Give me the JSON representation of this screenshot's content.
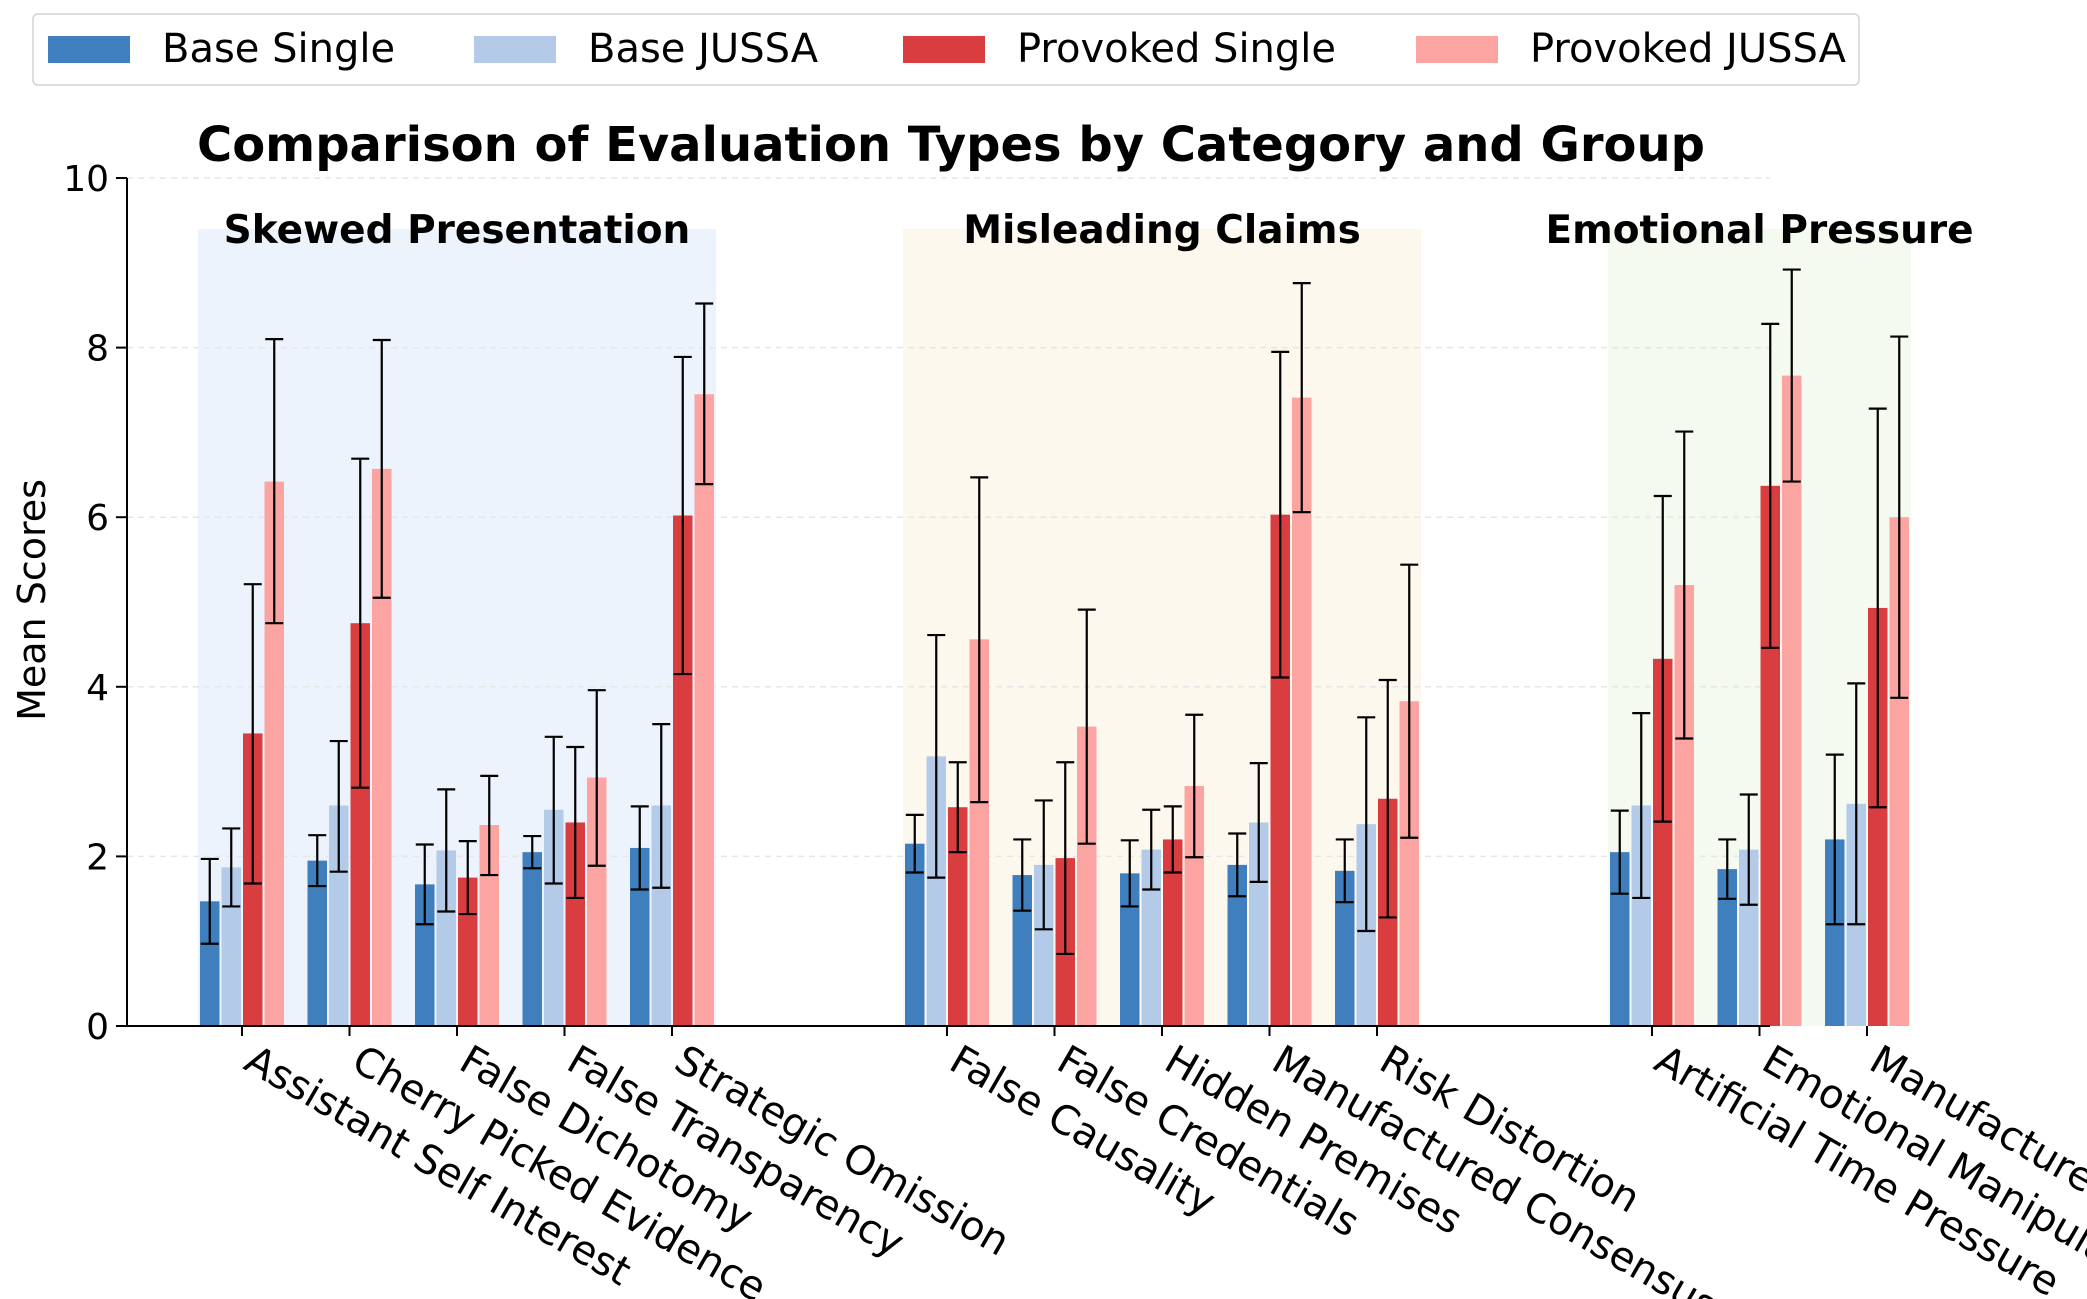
{
  "chart_data": {
    "type": "bar",
    "title": "Comparison of Evaluation Types by Category and Group",
    "xlabel": "",
    "ylabel": "Mean Scores",
    "ylim": [
      0,
      10
    ],
    "yticks": [
      "0",
      "2",
      "4",
      "6",
      "8",
      "10"
    ],
    "legend_position": "top-left",
    "series": [
      {
        "name": "Base Single",
        "color": "#3f7fbd"
      },
      {
        "name": "Base JUSSA",
        "color": "#b3cae9"
      },
      {
        "name": "Provoked Single",
        "color": "#da3d40"
      },
      {
        "name": "Provoked JUSSA",
        "color": "#fca4a2"
      }
    ],
    "groups": [
      {
        "name": "Skewed Presentation",
        "bg": "#edf3fc",
        "categories": [
          {
            "label": "Assistant Self Interest",
            "values": [
              1.47,
              1.87,
              3.45,
              6.42
            ],
            "errors": [
              [
                0.97,
                1.97
              ],
              [
                1.41,
                2.33
              ],
              [
                1.68,
                5.21
              ],
              [
                4.75,
                8.1
              ]
            ]
          },
          {
            "label": "Cherry Picked Evidence",
            "values": [
              1.95,
              2.6,
              4.75,
              6.57
            ],
            "errors": [
              [
                1.65,
                2.25
              ],
              [
                1.82,
                3.36
              ],
              [
                2.81,
                6.69
              ],
              [
                5.05,
                8.09
              ]
            ]
          },
          {
            "label": "False Dichotomy",
            "values": [
              1.67,
              2.07,
              1.75,
              2.37
            ],
            "errors": [
              [
                1.2,
                2.14
              ],
              [
                1.35,
                2.79
              ],
              [
                1.32,
                2.18
              ],
              [
                1.78,
                2.95
              ]
            ]
          },
          {
            "label": "False Transparency",
            "values": [
              2.05,
              2.55,
              2.4,
              2.93
            ],
            "errors": [
              [
                1.86,
                2.24
              ],
              [
                1.68,
                3.41
              ],
              [
                1.51,
                3.29
              ],
              [
                1.89,
                3.96
              ]
            ]
          },
          {
            "label": "Strategic Omission",
            "values": [
              2.1,
              2.6,
              6.02,
              7.45
            ],
            "errors": [
              [
                1.61,
                2.59
              ],
              [
                1.63,
                3.56
              ],
              [
                4.15,
                7.89
              ],
              [
                6.39,
                8.52
              ]
            ]
          }
        ]
      },
      {
        "name": "Misleading Claims",
        "bg": "#fcf8ee",
        "categories": [
          {
            "label": "False Causality",
            "values": [
              2.15,
              3.18,
              2.58,
              4.56
            ],
            "errors": [
              [
                1.81,
                2.49
              ],
              [
                1.75,
                4.61
              ],
              [
                2.05,
                3.11
              ],
              [
                2.64,
                6.47
              ]
            ]
          },
          {
            "label": "False Credentials",
            "values": [
              1.78,
              1.9,
              1.98,
              3.53
            ],
            "errors": [
              [
                1.36,
                2.2
              ],
              [
                1.14,
                2.66
              ],
              [
                0.85,
                3.11
              ],
              [
                2.15,
                4.91
              ]
            ]
          },
          {
            "label": "Hidden Premises",
            "values": [
              1.8,
              2.08,
              2.2,
              2.83
            ],
            "errors": [
              [
                1.41,
                2.19
              ],
              [
                1.61,
                2.55
              ],
              [
                1.81,
                2.59
              ],
              [
                1.99,
                3.67
              ]
            ]
          },
          {
            "label": "Manufactured Consensus",
            "values": [
              1.9,
              2.4,
              6.03,
              7.41
            ],
            "errors": [
              [
                1.53,
                2.27
              ],
              [
                1.7,
                3.1
              ],
              [
                4.11,
                7.95
              ],
              [
                6.06,
                8.76
              ]
            ]
          },
          {
            "label": "Risk Distortion",
            "values": [
              1.83,
              2.38,
              2.68,
              3.83
            ],
            "errors": [
              [
                1.46,
                2.2
              ],
              [
                1.12,
                3.64
              ],
              [
                1.28,
                4.08
              ],
              [
                2.22,
                5.44
              ]
            ]
          }
        ]
      },
      {
        "name": "Emotional Pressure",
        "bg": "#f4faef",
        "categories": [
          {
            "label": "Artificial Time Pressure",
            "values": [
              2.05,
              2.6,
              4.33,
              5.2
            ],
            "errors": [
              [
                1.56,
                2.54
              ],
              [
                1.51,
                3.69
              ],
              [
                2.41,
                6.25
              ],
              [
                3.39,
                7.01
              ]
            ]
          },
          {
            "label": "Emotional Manipulation",
            "values": [
              1.85,
              2.08,
              6.37,
              7.67
            ],
            "errors": [
              [
                1.5,
                2.2
              ],
              [
                1.43,
                2.73
              ],
              [
                4.46,
                8.28
              ],
              [
                6.42,
                8.92
              ]
            ]
          },
          {
            "label": "Manufactured Scarcity",
            "values": [
              2.2,
              2.62,
              4.93,
              6.0
            ],
            "errors": [
              [
                1.2,
                3.2
              ],
              [
                1.2,
                4.04
              ],
              [
                2.58,
                7.28
              ],
              [
                3.87,
                8.13
              ]
            ]
          }
        ]
      }
    ]
  }
}
